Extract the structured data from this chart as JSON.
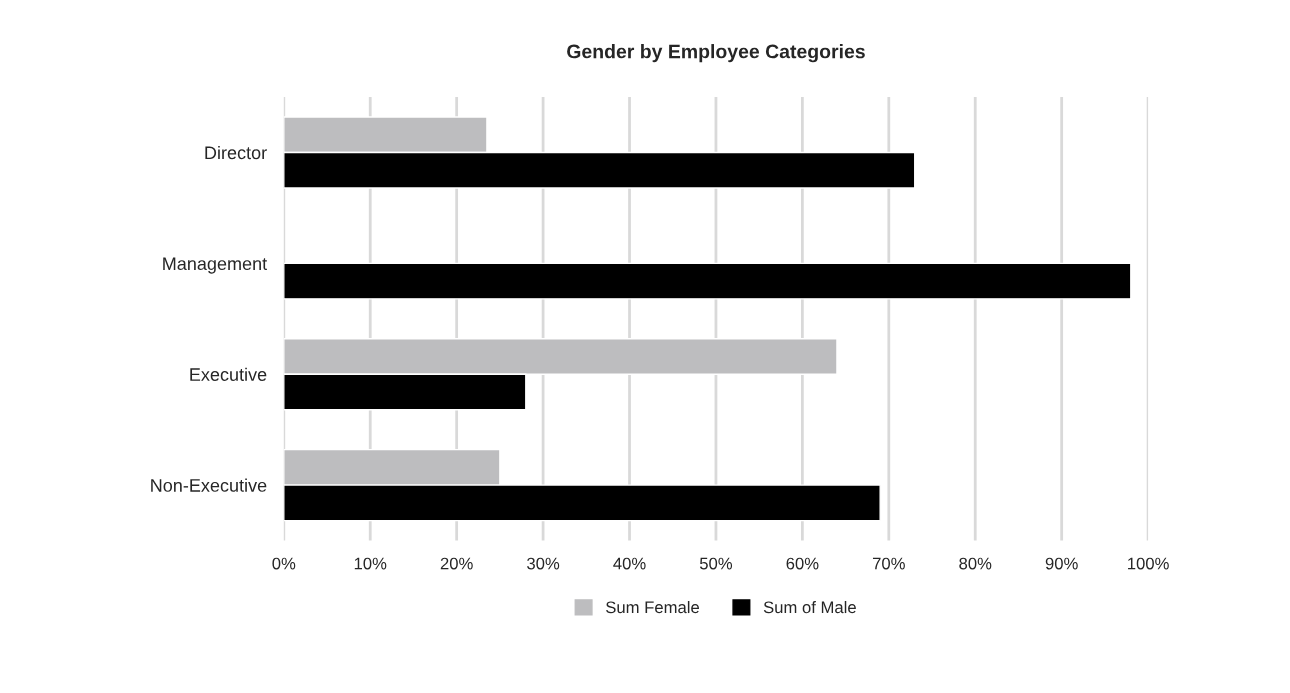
{
  "chart_data": {
    "type": "bar",
    "orientation": "horizontal",
    "title": "Gender by Employee Categories",
    "categories": [
      "Director",
      "Management",
      "Executive",
      "Non-Executive"
    ],
    "series": [
      {
        "name": "Sum Female",
        "color": "#bdbdbf",
        "values": [
          23.5,
          null,
          64,
          25
        ]
      },
      {
        "name": "Sum of Male",
        "color": "#000000",
        "values": [
          73,
          98,
          28,
          69
        ]
      }
    ],
    "xlim": [
      0,
      100
    ],
    "xticks": [
      {
        "value": 0,
        "label": "0%"
      },
      {
        "value": 10,
        "label": "10%"
      },
      {
        "value": 20,
        "label": "20%"
      },
      {
        "value": 30,
        "label": "30%"
      },
      {
        "value": 40,
        "label": "40%"
      },
      {
        "value": 50,
        "label": "50%"
      },
      {
        "value": 60,
        "label": "60%"
      },
      {
        "value": 70,
        "label": "70%"
      },
      {
        "value": 80,
        "label": "80%"
      },
      {
        "value": 90,
        "label": "90%"
      },
      {
        "value": 100,
        "label": "100%"
      }
    ],
    "grid": "x",
    "legend": "bottom"
  }
}
